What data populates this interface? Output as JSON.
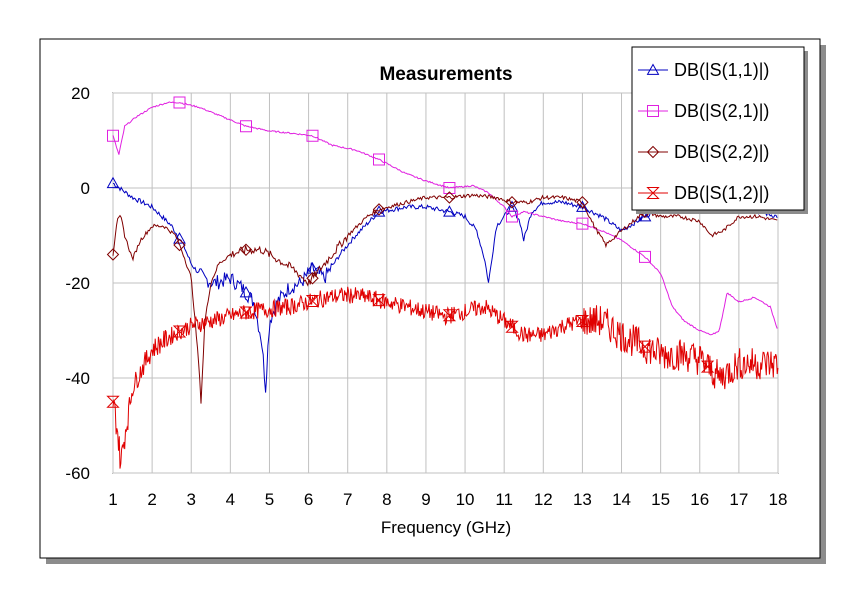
{
  "chart_data": {
    "type": "line",
    "title": "Measurements",
    "xlabel": "Frequency (GHz)",
    "ylabel": "",
    "xlim": [
      1,
      18
    ],
    "ylim": [
      -60,
      20
    ],
    "x_ticks": [
      "1",
      "2",
      "3",
      "4",
      "5",
      "6",
      "7",
      "8",
      "9",
      "10",
      "11",
      "12",
      "13",
      "14",
      "15",
      "16",
      "17",
      "18"
    ],
    "y_ticks": [
      "20",
      "0",
      "-20",
      "-40",
      "-60"
    ],
    "grid": true,
    "legend_position": "top-right",
    "series": [
      {
        "name": "DB(|S(1,1)|)",
        "color": "#0000c0",
        "marker": "triangle",
        "marker_x": [
          1.0,
          2.7,
          4.4,
          6.1,
          7.8,
          9.6,
          11.2,
          13.0,
          14.6
        ],
        "x": [
          1.0,
          1.5,
          2.0,
          2.5,
          2.8,
          3.0,
          3.3,
          3.6,
          4.0,
          4.3,
          4.6,
          4.8,
          4.9,
          5.0,
          5.2,
          5.5,
          5.8,
          6.1,
          6.4,
          6.8,
          7.2,
          7.8,
          8.5,
          9.0,
          9.6,
          10.0,
          10.3,
          10.5,
          10.6,
          10.8,
          11.2,
          11.4,
          11.5,
          11.7,
          12.0,
          12.5,
          13.0,
          13.5,
          14.0,
          14.6,
          15.0,
          15.5,
          16.0,
          16.5,
          17.0,
          17.5,
          18.0
        ],
        "values": [
          1,
          -2,
          -4,
          -8,
          -12,
          -16,
          -19,
          -20,
          -19,
          -21,
          -24,
          -32,
          -42,
          -28,
          -24,
          -21,
          -20,
          -17,
          -19,
          -14,
          -10,
          -5,
          -4,
          -4,
          -5,
          -6,
          -9,
          -15,
          -20,
          -8,
          -4,
          -7,
          -11,
          -5,
          -3,
          -3,
          -4,
          -6,
          -9,
          -6,
          -4,
          -3,
          -2,
          -3,
          -4,
          -5,
          -6
        ]
      },
      {
        "name": "DB(|S(2,1)|)",
        "color": "#e020e0",
        "marker": "square",
        "marker_x": [
          1.0,
          2.7,
          4.4,
          6.1,
          7.8,
          9.6,
          11.2,
          13.0,
          14.6
        ],
        "x": [
          1.0,
          1.15,
          1.3,
          1.6,
          2.0,
          2.4,
          2.7,
          3.2,
          3.8,
          4.4,
          5.0,
          5.6,
          6.1,
          6.6,
          7.2,
          7.8,
          8.5,
          9.0,
          9.6,
          10.2,
          10.6,
          11.0,
          11.2,
          11.5,
          12.0,
          12.5,
          13.0,
          13.5,
          14.0,
          14.6,
          15.0,
          15.3,
          15.6,
          16.0,
          16.3,
          16.5,
          16.7,
          17.0,
          17.4,
          17.8,
          18.0
        ],
        "values": [
          11,
          7,
          13,
          15,
          17,
          18,
          18,
          17,
          15,
          13,
          12,
          11.5,
          11,
          9,
          8,
          6,
          3,
          1.5,
          0,
          0.5,
          -1,
          -4,
          -6,
          -5,
          -6,
          -7,
          -7.5,
          -9,
          -11,
          -14.5,
          -18,
          -25,
          -28,
          -30,
          -31,
          -30,
          -22,
          -24,
          -23,
          -25,
          -30
        ]
      },
      {
        "name": "DB(|S(2,2)|)",
        "color": "#800000",
        "marker": "diamond",
        "marker_x": [
          1.0,
          2.7,
          4.4,
          6.1,
          7.8,
          9.6,
          11.2,
          13.0,
          14.6
        ],
        "x": [
          1.0,
          1.1,
          1.2,
          1.3,
          1.5,
          1.7,
          2.0,
          2.3,
          2.6,
          2.8,
          3.0,
          3.1,
          3.2,
          3.25,
          3.35,
          3.5,
          3.7,
          4.0,
          4.4,
          4.8,
          5.2,
          5.6,
          6.0,
          6.2,
          6.5,
          7.0,
          7.5,
          7.8,
          8.5,
          9.0,
          9.6,
          10.2,
          10.8,
          11.2,
          11.6,
          12.0,
          12.5,
          13.0,
          13.3,
          13.6,
          14.0,
          14.6,
          15.0,
          15.5,
          16.0,
          16.3,
          16.6,
          17.0,
          17.5,
          18.0
        ],
        "values": [
          -14,
          -7,
          -6,
          -10,
          -15,
          -11,
          -8,
          -8,
          -10,
          -14,
          -19,
          -28,
          -38,
          -45,
          -28,
          -20,
          -16,
          -14,
          -13,
          -13,
          -15,
          -17,
          -20,
          -18,
          -15,
          -10,
          -6,
          -4.5,
          -3,
          -2,
          -2,
          -1.5,
          -2,
          -3,
          -3,
          -2,
          -2,
          -3,
          -8,
          -12,
          -9,
          -5,
          -6,
          -6,
          -7,
          -10,
          -9,
          -6,
          -6,
          -7
        ]
      },
      {
        "name": "DB(|S(1,2)|)",
        "color": "#e00000",
        "marker": "hourglass",
        "marker_x": [
          1.0,
          2.7,
          4.4,
          6.1,
          7.8,
          9.6,
          11.2,
          13.0,
          14.6,
          16.2
        ],
        "x": [
          1.0,
          1.1,
          1.2,
          1.3,
          1.5,
          1.8,
          2.0,
          2.5,
          3.0,
          3.5,
          4.0,
          4.5,
          5.0,
          5.5,
          6.0,
          6.5,
          7.0,
          7.5,
          8.0,
          8.5,
          9.0,
          9.5,
          10.0,
          10.5,
          11.0,
          11.5,
          12.0,
          12.5,
          13.0,
          13.5,
          14.0,
          14.5,
          15.0,
          15.5,
          16.0,
          16.5,
          17.0,
          17.5,
          18.0
        ],
        "values": [
          -45,
          -50,
          -58,
          -52,
          -42,
          -37,
          -34,
          -31,
          -29,
          -28,
          -27,
          -26,
          -25.5,
          -25,
          -24,
          -23,
          -22.5,
          -23,
          -24,
          -25,
          -26,
          -27,
          -26,
          -25,
          -28,
          -31,
          -31,
          -29,
          -28,
          -28,
          -31,
          -33,
          -35,
          -35,
          -36,
          -40,
          -37,
          -37,
          -37
        ]
      }
    ]
  }
}
